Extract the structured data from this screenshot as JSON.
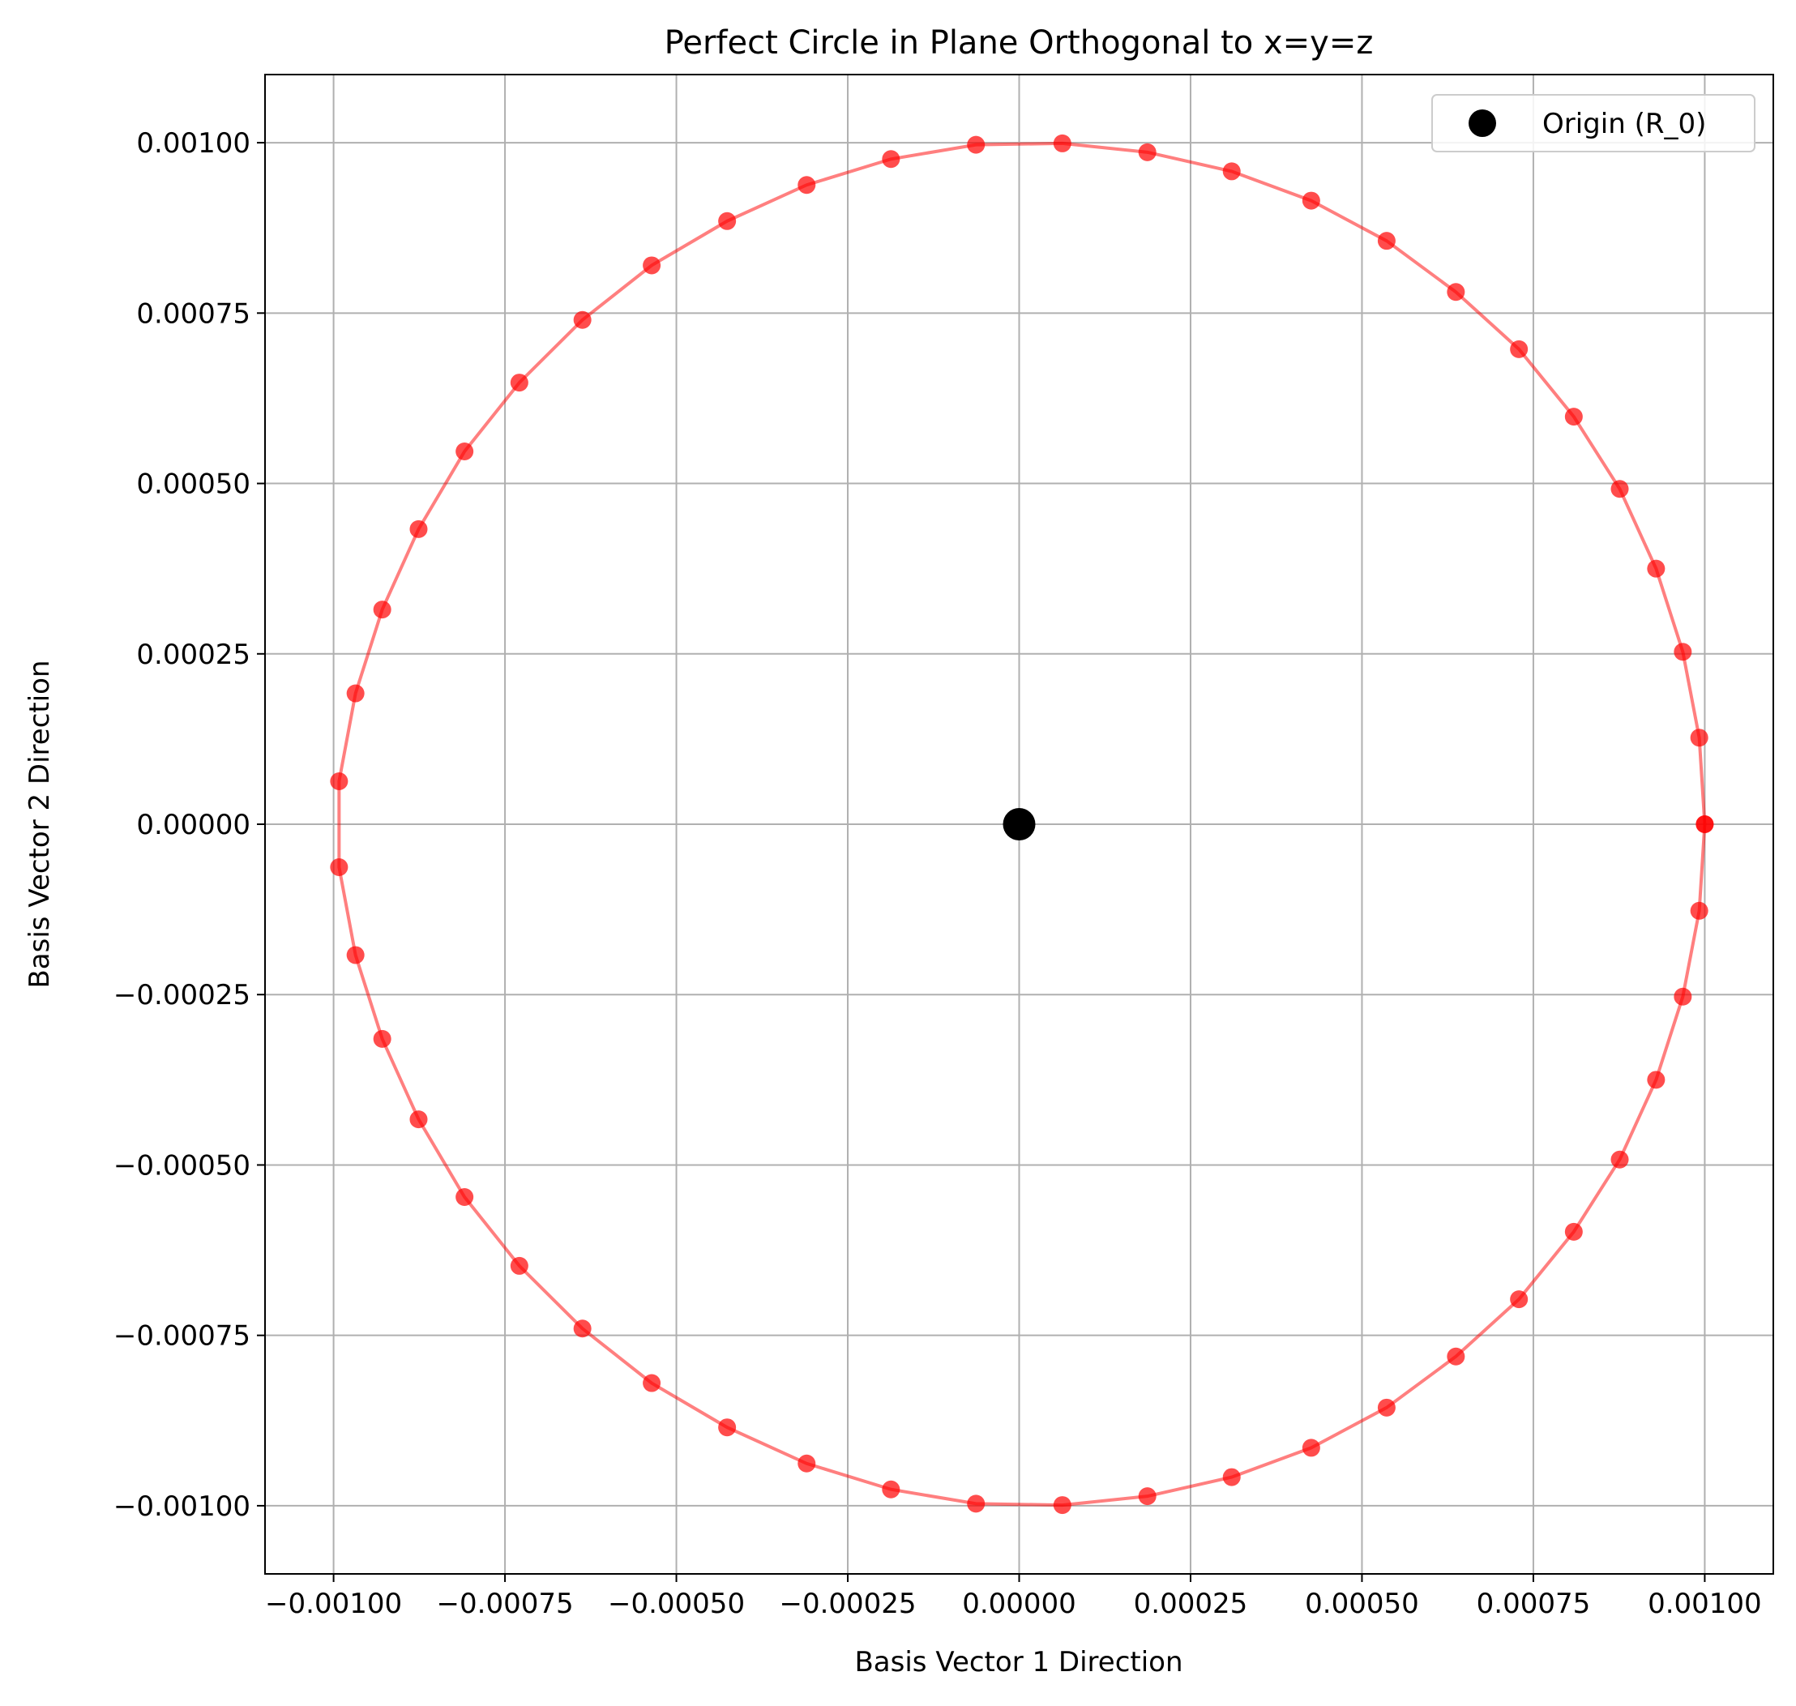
{
  "chart_data": {
    "type": "scatter",
    "title": "Perfect Circle in Plane Orthogonal to x=y=z",
    "xlabel": "Basis Vector 1 Direction",
    "ylabel": "Basis Vector 2 Direction",
    "xlim": [
      -0.0011,
      0.0011
    ],
    "ylim": [
      -0.0011,
      0.0011
    ],
    "grid": true,
    "legend_position": "top-right",
    "x_ticks": [
      {
        "value": -0.001,
        "label": "−0.00100"
      },
      {
        "value": -0.00075,
        "label": "−0.00075"
      },
      {
        "value": -0.0005,
        "label": "−0.00050"
      },
      {
        "value": -0.00025,
        "label": "−0.00025"
      },
      {
        "value": 0,
        "label": "0.00000"
      },
      {
        "value": 0.00025,
        "label": "0.00025"
      },
      {
        "value": 0.0005,
        "label": "0.00050"
      },
      {
        "value": 0.00075,
        "label": "0.00075"
      },
      {
        "value": 0.001,
        "label": "0.00100"
      }
    ],
    "y_ticks": [
      {
        "value": 0.001,
        "label": "0.00100"
      },
      {
        "value": 0.00075,
        "label": "0.00075"
      },
      {
        "value": 0.0005,
        "label": "0.00050"
      },
      {
        "value": 0.00025,
        "label": "0.00025"
      },
      {
        "value": 0,
        "label": "0.00000"
      },
      {
        "value": -0.00025,
        "label": "−0.00025"
      },
      {
        "value": -0.0005,
        "label": "−0.00050"
      },
      {
        "value": -0.00075,
        "label": "−0.00075"
      },
      {
        "value": -0.001,
        "label": "−0.00100"
      }
    ],
    "series": [
      {
        "kind": "line+markers",
        "color": "#ff0000",
        "radius": 0.001,
        "points": [
          [
            0.001,
            0
          ],
          [
            0.000992,
            0.000127
          ],
          [
            0.000968,
            0.000253
          ],
          [
            0.000929,
            0.000375
          ],
          [
            0.000876,
            0.000492
          ],
          [
            0.000809,
            0.000598
          ],
          [
            0.000729,
            0.000697
          ],
          [
            0.000637,
            0.000781
          ],
          [
            0.000536,
            0.000856
          ],
          [
            0.000426,
            0.000915
          ],
          [
            0.00031,
            0.000958
          ],
          [
            0.000187,
            0.000986
          ],
          [
            6.3e-05,
            0.000999
          ],
          [
            -6.3e-05,
            0.000997
          ],
          [
            -0.000187,
            0.000976
          ],
          [
            -0.00031,
            0.000938
          ],
          [
            -0.000426,
            0.000885
          ],
          [
            -0.000536,
            0.00082
          ],
          [
            -0.000637,
            0.00074
          ],
          [
            -0.000729,
            0.000648
          ],
          [
            -0.000809,
            0.000547
          ],
          [
            -0.000876,
            0.000433
          ],
          [
            -0.000929,
            0.000315
          ],
          [
            -0.000968,
            0.000192
          ],
          [
            -0.000992,
            6.3e-05
          ],
          [
            -0.000992,
            -6.3e-05
          ],
          [
            -0.000968,
            -0.000192
          ],
          [
            -0.000929,
            -0.000315
          ],
          [
            -0.000876,
            -0.000433
          ],
          [
            -0.000809,
            -0.000547
          ],
          [
            -0.000729,
            -0.000648
          ],
          [
            -0.000637,
            -0.00074
          ],
          [
            -0.000536,
            -0.00082
          ],
          [
            -0.000426,
            -0.000885
          ],
          [
            -0.00031,
            -0.000938
          ],
          [
            -0.000187,
            -0.000976
          ],
          [
            -6.3e-05,
            -0.000997
          ],
          [
            6.3e-05,
            -0.000999
          ],
          [
            0.000187,
            -0.000986
          ],
          [
            0.00031,
            -0.000958
          ],
          [
            0.000426,
            -0.000915
          ],
          [
            0.000536,
            -0.000856
          ],
          [
            0.000637,
            -0.000781
          ],
          [
            0.000729,
            -0.000697
          ],
          [
            0.000809,
            -0.000598
          ],
          [
            0.000876,
            -0.000492
          ],
          [
            0.000929,
            -0.000375
          ],
          [
            0.000968,
            -0.000253
          ],
          [
            0.000992,
            -0.000127
          ],
          [
            0.001,
            0
          ]
        ]
      },
      {
        "name": "Origin (R_0)",
        "kind": "scatter",
        "color": "#000000",
        "points": [
          [
            0,
            0
          ]
        ]
      }
    ]
  }
}
